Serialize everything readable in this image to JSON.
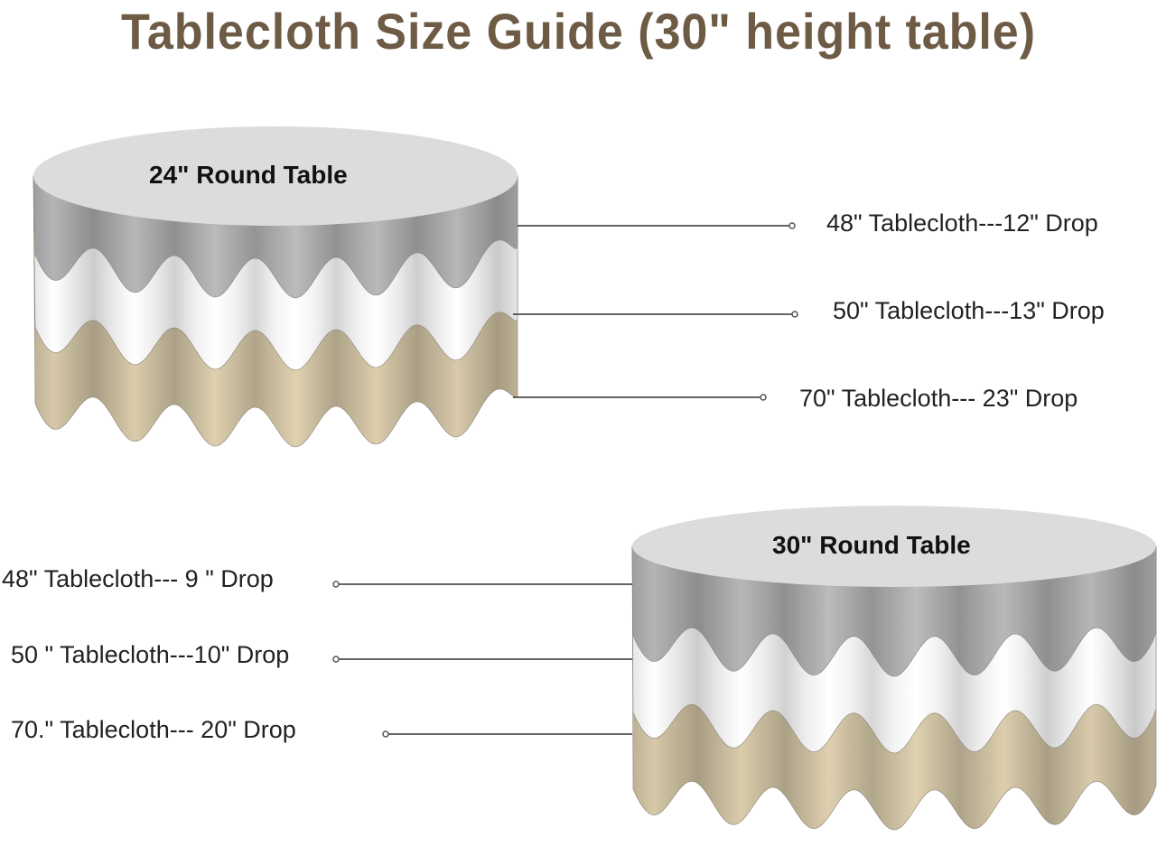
{
  "title": "Tablecloth Size Guide (30\" height table)",
  "colors": {
    "title": "#6e5b45",
    "gray": "#a9a9ab",
    "white": "#f4f4f4",
    "tan": "#c9bc9e",
    "top": "#dcdcdc"
  },
  "tables": [
    {
      "name": "24\" Round Table",
      "labels": [
        "48\" Tablecloth---12\" Drop",
        "50\" Tablecloth---13\" Drop",
        "70\" Tablecloth--- 23\" Drop"
      ]
    },
    {
      "name": "30\" Round Table",
      "labels": [
        "48\" Tablecloth--- 9 \" Drop",
        "50 \" Tablecloth---10\" Drop",
        "70.\" Tablecloth--- 20\" Drop"
      ]
    }
  ]
}
